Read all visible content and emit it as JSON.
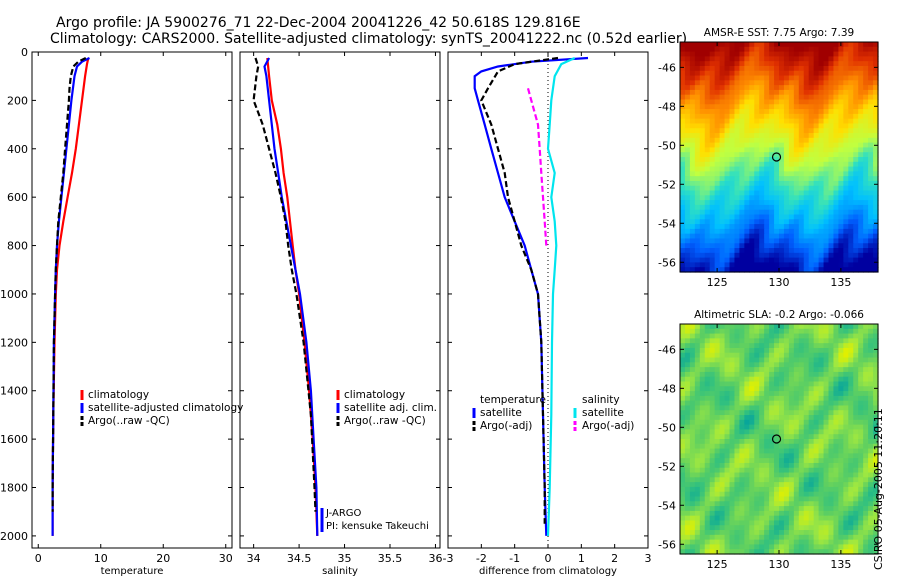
{
  "header": {
    "line1": "Argo profile: JA 5900276_71 22-Dec-2004 20041226_42 50.618S 129.816E",
    "line2": "Climatology: CARS2000. Satellite-adjusted climatology: synTS_20041222.nc (0.52d earlier)"
  },
  "credit": "CSIRO 05-Aug-2005 11:20:11",
  "colors": {
    "climatology": "#ff0000",
    "satellite": "#0000ff",
    "argo": "#000000",
    "salinity_satellite": "#00e5ee",
    "salinity_argo": "#ff00ff"
  },
  "chart_data": [
    {
      "type": "line",
      "name": "temperature-profile",
      "xlabel": "temperature",
      "ylabel": "",
      "xlim": [
        -1,
        31
      ],
      "ylim": [
        2050,
        0
      ],
      "xticks": [
        0,
        10,
        20,
        30
      ],
      "yticks": [
        0,
        200,
        400,
        600,
        800,
        1000,
        1200,
        1400,
        1600,
        1800,
        2000
      ],
      "legend": [
        "climatology",
        "satellite-adjusted climatology",
        "Argo(..raw -QC)"
      ],
      "series": [
        {
          "name": "climatology",
          "style": "solid",
          "color": "#ff0000",
          "depth": [
            25,
            50,
            100,
            200,
            300,
            400,
            500,
            600,
            700,
            800,
            900,
            1000,
            1200,
            1500,
            1800,
            2000
          ],
          "values": [
            8.0,
            7.8,
            7.5,
            7.0,
            6.5,
            6.0,
            5.4,
            4.7,
            4.0,
            3.4,
            3.0,
            2.8,
            2.6,
            2.4,
            2.3,
            2.3
          ]
        },
        {
          "name": "satellite-adjusted climatology",
          "style": "solid",
          "color": "#0000ff",
          "depth": [
            25,
            40,
            60,
            100,
            200,
            300,
            400,
            500,
            600,
            700,
            800,
            900,
            1000,
            1200,
            1500,
            1800,
            2000
          ],
          "values": [
            8.2,
            7.0,
            6.2,
            5.8,
            5.3,
            4.9,
            4.5,
            4.1,
            3.7,
            3.3,
            3.0,
            2.8,
            2.7,
            2.5,
            2.4,
            2.3,
            2.3
          ]
        },
        {
          "name": "Argo(..raw -QC)",
          "style": "dashed",
          "color": "#000000",
          "depth": [
            25,
            40,
            60,
            100,
            150,
            200,
            300,
            400,
            500,
            600,
            700,
            800,
            900,
            1000,
            1200,
            1500,
            1800,
            1900
          ],
          "values": [
            7.6,
            6.4,
            5.6,
            5.2,
            5.0,
            4.9,
            4.6,
            4.3,
            4.0,
            3.6,
            3.2,
            3.0,
            2.8,
            2.7,
            2.5,
            2.4,
            2.3,
            2.3
          ]
        }
      ]
    },
    {
      "type": "line",
      "name": "salinity-profile",
      "xlabel": "salinity",
      "xlim": [
        33.85,
        36.05
      ],
      "ylim": [
        2050,
        0
      ],
      "xticks": [
        "34",
        "34.5",
        "35",
        "35.5",
        "36"
      ],
      "legend": [
        "climatology",
        "satellite adj. clim.",
        "Argo(..raw -QC)"
      ],
      "annotations": [
        "J-ARGO",
        "PI: kensuke Takeuchi"
      ],
      "series": [
        {
          "name": "climatology",
          "style": "solid",
          "color": "#ff0000",
          "depth": [
            25,
            100,
            200,
            300,
            400,
            500,
            600,
            700,
            800,
            900,
            1000,
            1200,
            1400,
            1600,
            1800,
            2000
          ],
          "values": [
            34.15,
            34.17,
            34.2,
            34.26,
            34.3,
            34.33,
            34.37,
            34.4,
            34.43,
            34.46,
            34.5,
            34.56,
            34.61,
            34.65,
            34.68,
            34.7
          ]
        },
        {
          "name": "satellite adj. clim.",
          "style": "solid",
          "color": "#0000ff",
          "depth": [
            25,
            60,
            100,
            200,
            300,
            400,
            500,
            600,
            700,
            800,
            900,
            1000,
            1200,
            1400,
            1600,
            1800,
            2000
          ],
          "values": [
            34.17,
            34.12,
            34.14,
            34.17,
            34.2,
            34.23,
            34.27,
            34.31,
            34.36,
            34.41,
            34.46,
            34.51,
            34.58,
            34.63,
            34.66,
            34.69,
            34.7
          ]
        },
        {
          "name": "Argo(..raw -QC)",
          "style": "dashed",
          "color": "#000000",
          "depth": [
            25,
            60,
            100,
            200,
            250,
            300,
            400,
            500,
            600,
            700,
            800,
            900,
            1000,
            1200,
            1500,
            1800,
            1900
          ],
          "values": [
            34.02,
            34.05,
            34.03,
            34.0,
            34.05,
            34.1,
            34.17,
            34.24,
            34.3,
            34.35,
            34.38,
            34.42,
            34.47,
            34.55,
            34.63,
            34.67,
            34.68
          ]
        }
      ]
    },
    {
      "type": "line",
      "name": "difference-profile",
      "xlabel": "difference from climatology",
      "xlim": [
        -3,
        3
      ],
      "ylim": [
        2050,
        0
      ],
      "xticks": [
        "-3",
        "-2",
        "-1",
        "0",
        "1",
        "2",
        "3"
      ],
      "legend": {
        "temperature": {
          "title": "temperature",
          "items": [
            "satellite",
            "Argo(-adj)"
          ]
        },
        "salinity": {
          "title": "salinity",
          "items": [
            "satellite",
            "Argo(-adj)"
          ]
        }
      },
      "series": [
        {
          "name": "temperature satellite",
          "style": "solid",
          "color": "#0000ff",
          "depth": [
            25,
            40,
            60,
            80,
            100,
            150,
            200,
            300,
            400,
            500,
            600,
            700,
            800,
            900,
            1000,
            1200,
            1500,
            1800,
            2000
          ],
          "values": [
            1.2,
            -0.5,
            -1.5,
            -2.0,
            -2.2,
            -2.2,
            -2.1,
            -1.9,
            -1.7,
            -1.5,
            -1.3,
            -1.0,
            -0.7,
            -0.5,
            -0.3,
            -0.2,
            -0.15,
            -0.1,
            -0.05
          ]
        },
        {
          "name": "temperature Argo(-adj)",
          "style": "dashed",
          "color": "#000000",
          "depth": [
            25,
            50,
            80,
            150,
            200,
            300,
            400,
            500,
            600,
            700,
            800,
            900,
            1000,
            1200,
            1500,
            1800,
            1950
          ],
          "values": [
            0.3,
            -1.0,
            -1.5,
            -1.8,
            -2.0,
            -1.7,
            -1.5,
            -1.3,
            -1.2,
            -1.0,
            -0.8,
            -0.5,
            -0.3,
            -0.2,
            -0.15,
            -0.1,
            -0.1
          ]
        },
        {
          "name": "salinity satellite",
          "style": "solid",
          "color": "#00e5ee",
          "depth": [
            25,
            50,
            100,
            200,
            300,
            400,
            500,
            600,
            700,
            800,
            900,
            1000,
            1200,
            1500,
            1800,
            2000
          ],
          "values": [
            0.8,
            0.4,
            0.2,
            0.1,
            0.05,
            0.0,
            0.2,
            0.1,
            0.2,
            0.25,
            0.2,
            0.15,
            0.12,
            0.1,
            0.05,
            0.0
          ]
        },
        {
          "name": "salinity Argo(-adj)",
          "style": "dashed",
          "color": "#ff00ff",
          "depth": [
            150,
            200,
            300,
            400,
            500,
            600,
            700,
            800
          ],
          "values": [
            -0.6,
            -0.5,
            -0.3,
            -0.25,
            -0.2,
            -0.15,
            -0.1,
            -0.05
          ]
        }
      ]
    },
    {
      "type": "heatmap",
      "name": "sst-map",
      "title": "AMSR-E SST: 7.75 Argo: 7.39",
      "xlim": [
        122,
        138
      ],
      "ylim": [
        -56.5,
        -44.7
      ],
      "xticks": [
        "125",
        "130",
        "135"
      ],
      "yticks": [
        "-46",
        "-48",
        "-50",
        "-52",
        "-54",
        "-56"
      ],
      "marker": {
        "lon": 129.8,
        "lat": -50.6
      },
      "colormap": [
        "#0000a0",
        "#0060ff",
        "#00c0ff",
        "#30e0c0",
        "#c0ff40",
        "#ffe000",
        "#ff9000",
        "#e03000",
        "#a00000"
      ],
      "note": "SST decreasing southward"
    },
    {
      "type": "heatmap",
      "name": "sla-map",
      "title": "Altimetric SLA: -0.2 Argo: -0.066",
      "xlim": [
        122,
        138
      ],
      "ylim": [
        -56.5,
        -44.7
      ],
      "xticks": [
        "125",
        "130",
        "135"
      ],
      "yticks": [
        "-46",
        "-48",
        "-50",
        "-52",
        "-54",
        "-56"
      ],
      "marker": {
        "lon": 129.8,
        "lat": -50.6
      },
      "colormap": [
        "#00a0a0",
        "#30c080",
        "#60d060",
        "#a0e840",
        "#e0f000",
        "#ffc000",
        "#ff9000"
      ],
      "note": "patchy green field"
    }
  ]
}
